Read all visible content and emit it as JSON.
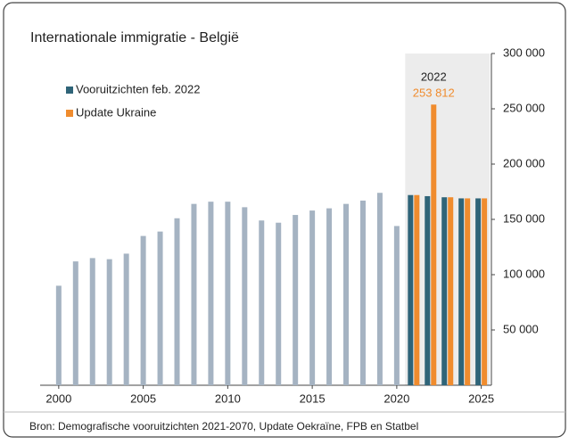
{
  "chart_data": {
    "type": "bar",
    "title": "Internationale immigratie - België",
    "source": "Bron: Demografische vooruitzichten 2021-2070, Update Oekraïne, FPB en Statbel",
    "x": [
      2000,
      2001,
      2002,
      2003,
      2004,
      2005,
      2006,
      2007,
      2008,
      2009,
      2010,
      2011,
      2012,
      2013,
      2014,
      2015,
      2016,
      2017,
      2018,
      2019,
      2020,
      2021,
      2022,
      2023,
      2024,
      2025
    ],
    "series": [
      {
        "color": "#a5b3c2",
        "values": [
          90000,
          112000,
          115000,
          114000,
          119000,
          135000,
          139000,
          151000,
          164000,
          166000,
          166000,
          161000,
          149000,
          147000,
          154000,
          158000,
          160000,
          164000,
          167000,
          174000,
          144000,
          null,
          null,
          null,
          null,
          null
        ]
      },
      {
        "name": "Vooruitzichten feb. 2022",
        "color": "#2f6478",
        "values": [
          null,
          null,
          null,
          null,
          null,
          null,
          null,
          null,
          null,
          null,
          null,
          null,
          null,
          null,
          null,
          null,
          null,
          null,
          null,
          null,
          null,
          172000,
          171000,
          170000,
          169000,
          169000
        ]
      },
      {
        "name": "Update Ukraine",
        "color": "#f08c2e",
        "values": [
          null,
          null,
          null,
          null,
          null,
          null,
          null,
          null,
          null,
          null,
          null,
          null,
          null,
          null,
          null,
          null,
          null,
          null,
          null,
          null,
          null,
          172000,
          253812,
          170000,
          169000,
          169000
        ],
        "value_labels": [
          null,
          null,
          null,
          null,
          null,
          null,
          null,
          null,
          null,
          null,
          null,
          null,
          null,
          null,
          null,
          null,
          null,
          null,
          null,
          null,
          null,
          null,
          "253 812",
          null,
          null,
          null
        ]
      }
    ],
    "annotation": {
      "text": "2022",
      "x": 2022
    },
    "shaded_xrange": [
      2020.5,
      2025.5
    ],
    "xlim": [
      1998.9,
      2025.6
    ],
    "xticks": [
      2000,
      2005,
      2010,
      2015,
      2020,
      2025
    ],
    "ylim": [
      0,
      300000
    ],
    "yticks": [
      {
        "value": 50000,
        "label": "50 000"
      },
      {
        "value": 100000,
        "label": "100 000"
      },
      {
        "value": 150000,
        "label": "150 000"
      },
      {
        "value": 200000,
        "label": "200 000"
      },
      {
        "value": 250000,
        "label": "250 000"
      },
      {
        "value": 300000,
        "label": "300 000"
      }
    ],
    "y_axis_side": "right"
  }
}
